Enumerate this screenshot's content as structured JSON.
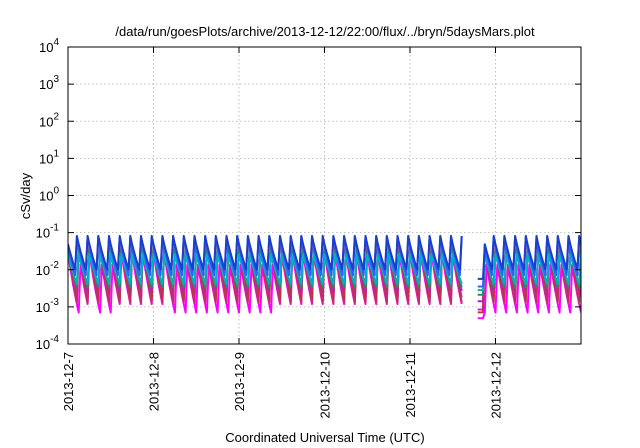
{
  "chart_data": {
    "type": "line",
    "title": "/data/run/goesPlots/archive/2013-12-12/22:00/flux/../bryn/5daysMars.plot",
    "xlabel": "Coordinated Universal Time (UTC)",
    "ylabel": "cSv/day",
    "y_scale": "log",
    "ylim": [
      0.0001,
      10000
    ],
    "x_range": [
      "2013-12-07",
      "2013-12-13"
    ],
    "grid": true,
    "legend": "none",
    "x_tick_labels": [
      "2013-12-7",
      "2013-12-8",
      "2013-12-9",
      "2013-12-10",
      "2013-12-11",
      "2013-12-12"
    ],
    "x_ticks_days": [
      0,
      1,
      2,
      3,
      4,
      5
    ],
    "y_ticks": [
      {
        "base": "10",
        "exp": "-4"
      },
      {
        "base": "10",
        "exp": "-3"
      },
      {
        "base": "10",
        "exp": "-2"
      },
      {
        "base": "10",
        "exp": "-1"
      },
      {
        "base": "10",
        "exp": "0"
      },
      {
        "base": "10",
        "exp": "1"
      },
      {
        "base": "10",
        "exp": "2"
      },
      {
        "base": "10",
        "exp": "3"
      },
      {
        "base": "10",
        "exp": "4"
      }
    ],
    "pattern": {
      "sawtooth_period_hours": 3,
      "gap_days": [
        4.62,
        4.78
      ],
      "dip_days": [
        4.75,
        4.87
      ]
    },
    "series": [
      {
        "color": "#ff00ff",
        "peak": 0.035,
        "trough": 0.0007
      },
      {
        "color": "#cc22cc",
        "peak": 0.05,
        "trough": 0.0012
      },
      {
        "color": "#8a2be2",
        "peak": 0.06,
        "trough": 0.002
      },
      {
        "color": "#c0305a",
        "peak": 0.09,
        "trough": 0.001
      },
      {
        "color": "#2e8b57",
        "peak": 0.055,
        "trough": 0.003
      },
      {
        "color": "#00b0c8",
        "peak": 0.045,
        "trough": 0.004
      },
      {
        "color": "#3060ff",
        "peak": 0.085,
        "trough": 0.005
      },
      {
        "color": "#1a3fcc",
        "peak": 0.1,
        "trough": 0.008
      }
    ]
  }
}
